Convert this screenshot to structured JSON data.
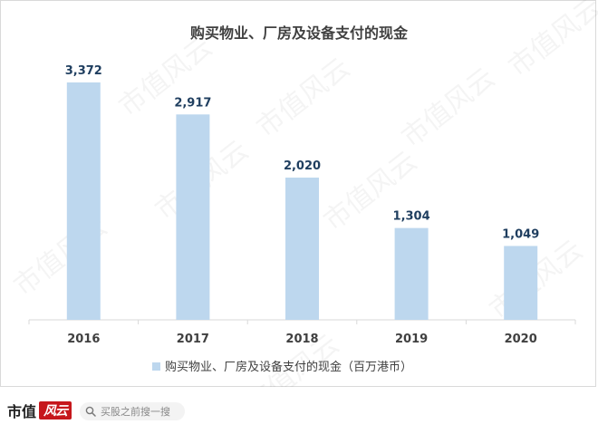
{
  "chart_data": {
    "type": "bar",
    "title": "购买物业、厂房及设备支付的现金",
    "categories": [
      "2016",
      "2017",
      "2018",
      "2019",
      "2020"
    ],
    "series": [
      {
        "name": "购买物业、厂房及设备支付的现金（百万港币）",
        "values": [
          3372,
          2917,
          2020,
          1304,
          1049
        ]
      }
    ],
    "value_labels": [
      "3,372",
      "2,917",
      "2,020",
      "1,304",
      "1,049"
    ],
    "xlabel": "",
    "ylabel": "",
    "ylim": [
      0,
      3500
    ],
    "grid": false,
    "legend": "bottom",
    "colors": {
      "bar": "#bdd7ee",
      "label": "#1f3e5f",
      "axis": "#d9d9d9",
      "text": "#404040"
    }
  },
  "watermark": "市值风云",
  "footer": {
    "brand_text": "市值",
    "brand_logo_text": "风云",
    "search_placeholder": "买股之前搜一搜",
    "search_icon": "search-icon"
  }
}
